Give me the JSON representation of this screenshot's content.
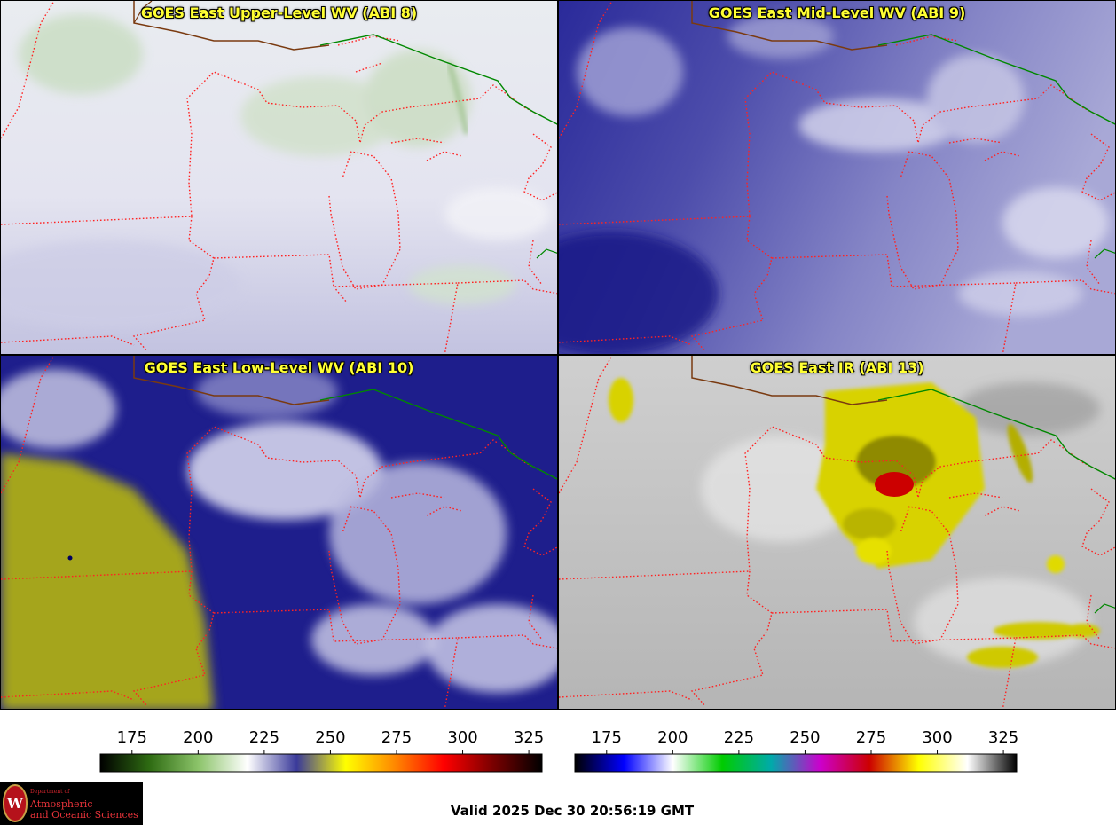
{
  "panels": [
    {
      "title": "GOES East Upper-Level WV (ABI 8)",
      "scheme": "upper"
    },
    {
      "title": "GOES East Mid-Level WV (ABI 9)",
      "scheme": "mid"
    },
    {
      "title": "GOES East Low-Level WV (ABI 10)",
      "scheme": "low"
    },
    {
      "title": "GOES East IR (ABI 13)",
      "scheme": "ir"
    }
  ],
  "colorbars": [
    {
      "ticks": [
        "175",
        "200",
        "225",
        "250",
        "275",
        "300",
        "325"
      ],
      "tick_values": [
        175,
        200,
        225,
        250,
        275,
        300,
        325
      ],
      "range": [
        163,
        330
      ],
      "colors": [
        "#000000",
        "#2e6b12",
        "#8cc46a",
        "#ffffff",
        "#3a3a9a",
        "#ffff00",
        "#ff8800",
        "#ff0000",
        "#7a0000",
        "#000000"
      ]
    },
    {
      "ticks": [
        "175",
        "200",
        "225",
        "250",
        "275",
        "300",
        "325"
      ],
      "tick_values": [
        175,
        200,
        225,
        250,
        275,
        300,
        325
      ],
      "range": [
        163,
        330
      ],
      "colors": [
        "#000000",
        "#0000ff",
        "#ffffff",
        "#00cc00",
        "#00aaaa",
        "#cc00cc",
        "#cc0000",
        "#ffff00",
        "#ffffff",
        "#000000"
      ]
    }
  ],
  "logo": {
    "seal": "W",
    "department": "Department of",
    "name_line1": "Atmospheric",
    "name_line2": "and Oceanic Sciences"
  },
  "valid_time": "Valid 2025 Dec 30 20:56:19 GMT",
  "colors": {
    "title_text": "#ffff33",
    "state_borders": "#ff2222",
    "canada_border": "#008800",
    "coastline": "#7a3a10"
  }
}
